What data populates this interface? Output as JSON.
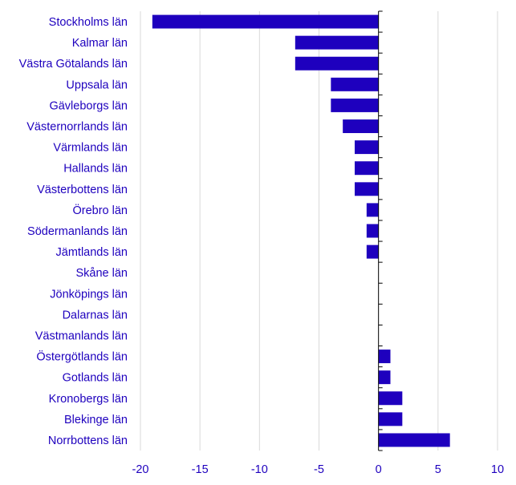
{
  "chart_data": {
    "type": "bar",
    "orientation": "horizontal",
    "title": "",
    "xlabel": "",
    "ylabel": "",
    "categories": [
      "Stockholms län",
      "Kalmar län",
      "Västra Götalands län",
      "Uppsala län",
      "Gävleborgs län",
      "Västernorrlands län",
      "Värmlands län",
      "Hallands län",
      "Västerbottens län",
      "Örebro län",
      "Södermanlands län",
      "Jämtlands län",
      "Skåne län",
      "Jönköpings län",
      "Dalarnas län",
      "Västmanlands län",
      "Östergötlands län",
      "Gotlands län",
      "Kronobergs län",
      "Blekinge län",
      "Norrbottens län"
    ],
    "values": [
      -19,
      -7,
      -7,
      -4,
      -4,
      -3,
      -2,
      -2,
      -2,
      -1,
      -1,
      -1,
      0,
      0,
      0,
      0,
      1,
      1,
      2,
      2,
      6
    ],
    "xlim": [
      -20,
      10
    ],
    "xticks": [
      -20,
      -15,
      -10,
      -5,
      0,
      5,
      10
    ],
    "xtick_labels": [
      "-20",
      "-15",
      "-10",
      "-5",
      "0",
      "5",
      "10"
    ],
    "grid": "vertical",
    "legend": "none",
    "colors": {
      "bar": "#1e00be",
      "text": "#1e00be",
      "grid": "#d9d9d9",
      "axis": "#000000"
    }
  }
}
